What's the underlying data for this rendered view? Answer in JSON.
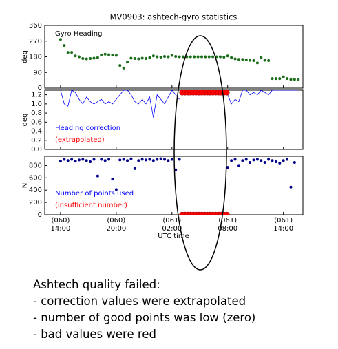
{
  "chart_data": [
    {
      "type": "scatter",
      "title": "MV0903: ashtech-gyro statistics",
      "ylabel": "deg",
      "xlim": [
        12.3,
        40.1
      ],
      "ylim": [
        0,
        360
      ],
      "yticks": [
        0,
        90,
        180,
        270,
        360
      ],
      "annotations": [
        {
          "text": "Gyro Heading",
          "color": "#000000"
        }
      ],
      "series": [
        {
          "color": "#1a6e1a",
          "x": [
            14.0,
            14.4,
            14.8,
            15.2,
            15.6,
            16.0,
            16.4,
            16.8,
            17.2,
            17.6,
            18.0,
            18.4,
            18.8,
            19.2,
            19.6,
            20.0,
            20.4,
            20.8,
            21.2,
            21.6,
            22.0,
            22.4,
            22.8,
            23.2,
            23.6,
            24.0,
            24.4,
            24.8,
            25.2,
            25.6,
            26.0,
            26.4,
            26.8,
            27.2,
            27.6,
            28.0,
            28.4,
            28.8,
            29.2,
            29.6,
            30.0,
            30.4,
            30.8,
            31.2,
            31.6,
            32.0,
            32.4,
            32.8,
            33.2,
            33.6,
            34.0,
            34.4,
            34.8,
            35.2,
            35.6,
            36.0,
            36.4,
            36.8,
            37.2,
            37.6,
            38.0,
            38.4,
            38.8,
            39.2,
            39.6
          ],
          "values": [
            280,
            245,
            205,
            205,
            185,
            180,
            170,
            168,
            170,
            172,
            175,
            190,
            195,
            192,
            190,
            188,
            130,
            115,
            150,
            172,
            170,
            168,
            172,
            170,
            175,
            185,
            180,
            178,
            182,
            180,
            188,
            182,
            180,
            180,
            180,
            180,
            180,
            180,
            180,
            180,
            180,
            180,
            180,
            180,
            178,
            185,
            175,
            168,
            165,
            165,
            162,
            160,
            158,
            145,
            175,
            160,
            158,
            55,
            55,
            55,
            65,
            55,
            50,
            50,
            48
          ]
        }
      ]
    },
    {
      "type": "line",
      "ylabel": "deg",
      "xlim": [
        12.3,
        40.1
      ],
      "ylim": [
        0,
        1.3
      ],
      "yticks": [
        {
          "value": 0,
          "label": "0.0"
        },
        0.2,
        0.4,
        0.6,
        0.8,
        {
          "value": 1,
          "label": "1.0"
        },
        1.2
      ],
      "annotations": [
        {
          "text": "Heading correction",
          "color": "#0000ff"
        },
        {
          "text": "(extrapolated)",
          "color": "#ff0000"
        }
      ],
      "series": [
        {
          "color": "#0000ff",
          "style": "line",
          "x": [
            14.0,
            14.4,
            14.8,
            15.2,
            15.6,
            16.0,
            16.4,
            16.8,
            17.2,
            17.6,
            18.0,
            18.4,
            18.8,
            19.2,
            19.6,
            20.0,
            20.4,
            20.8,
            21.2,
            21.6,
            22.0,
            22.4,
            22.8,
            23.2,
            23.6,
            24.0,
            24.4,
            24.8,
            25.2,
            25.6,
            26.0,
            26.4,
            26.8,
            27.2,
            27.6,
            28.0,
            28.4,
            28.8,
            29.2,
            29.6,
            30.0,
            30.4,
            30.8,
            31.2,
            31.6,
            32.0,
            32.4,
            32.8,
            33.2,
            33.6,
            34.0,
            34.4,
            34.8,
            35.2,
            35.6,
            36.0,
            36.4,
            36.8,
            37.2,
            37.6,
            38.0,
            38.4,
            38.8,
            39.2,
            39.6
          ],
          "values": [
            1.3,
            1.0,
            0.95,
            1.3,
            1.25,
            1.1,
            1.0,
            1.15,
            1.05,
            1.0,
            1.05,
            1.1,
            1.0,
            1.05,
            1.0,
            1.1,
            1.2,
            1.3,
            1.3,
            1.2,
            1.05,
            1.0,
            1.1,
            1.0,
            1.15,
            0.7,
            1.2,
            1.1,
            1.0,
            1.15,
            1.3,
            1.2,
            1.1,
            null,
            null,
            null,
            null,
            null,
            null,
            null,
            null,
            null,
            null,
            null,
            null,
            1.2,
            1.0,
            1.1,
            1.05,
            1.3,
            1.3,
            1.2,
            1.25,
            1.2,
            1.3,
            1.25,
            1.2,
            1.3,
            1.3,
            1.3,
            1.3,
            1.3,
            1.3,
            1.3,
            1.3
          ]
        },
        {
          "color": "#ff0000",
          "style": "dots",
          "x": [
            27.1,
            27.4,
            27.7,
            28.0,
            28.3,
            28.6,
            28.9,
            29.2,
            29.5,
            29.8,
            30.1,
            30.4,
            30.7,
            31.0,
            31.3,
            31.6,
            31.9
          ],
          "values": [
            1.25,
            1.25,
            1.25,
            1.25,
            1.25,
            1.25,
            1.25,
            1.25,
            1.25,
            1.25,
            1.25,
            1.25,
            1.25,
            1.25,
            1.25,
            1.25,
            1.25
          ]
        }
      ]
    },
    {
      "type": "scatter",
      "ylabel": "N",
      "xlabel": "UTC time",
      "xlim": [
        12.3,
        40.1
      ],
      "ylim": [
        0,
        950
      ],
      "yticks": [
        0,
        200,
        400,
        600,
        800
      ],
      "xticks": [
        {
          "value": 14,
          "label": "(060)\n14:00"
        },
        {
          "value": 20,
          "label": "(060)\n20:00"
        },
        {
          "value": 26,
          "label": "(061)\n02:00"
        },
        {
          "value": 32,
          "label": "(061)\n08:00"
        },
        {
          "value": 38,
          "label": "(061)\n14:00"
        }
      ],
      "annotations": [
        {
          "text": "Number of points used",
          "color": "#0000ff"
        },
        {
          "text": "(insufficient number)",
          "color": "#ff0000"
        }
      ],
      "series": [
        {
          "color": "#00008b",
          "style": "dots",
          "x": [
            14.0,
            14.4,
            14.8,
            15.2,
            15.6,
            16.0,
            16.4,
            16.8,
            17.2,
            17.6,
            18.0,
            18.4,
            18.8,
            19.2,
            19.6,
            20.0,
            20.4,
            20.8,
            21.2,
            21.6,
            22.0,
            22.4,
            22.8,
            23.2,
            23.6,
            24.0,
            24.4,
            24.8,
            25.2,
            25.6,
            26.0,
            26.4,
            26.8,
            27.2,
            27.6,
            28.0,
            28.4,
            28.8,
            29.2,
            29.6,
            30.0,
            30.4,
            30.8,
            31.2,
            31.6,
            32.0,
            32.4,
            32.8,
            33.2,
            33.6,
            34.0,
            34.4,
            34.8,
            35.2,
            35.6,
            36.0,
            36.4,
            36.8,
            37.2,
            37.6,
            38.0,
            38.4,
            38.8,
            39.2,
            39.6
          ],
          "values": [
            870,
            900,
            880,
            900,
            870,
            890,
            900,
            880,
            860,
            900,
            630,
            900,
            880,
            900,
            580,
            410,
            890,
            900,
            880,
            910,
            750,
            880,
            900,
            890,
            900,
            880,
            900,
            910,
            900,
            880,
            900,
            730,
            900,
            null,
            null,
            null,
            null,
            null,
            null,
            null,
            null,
            null,
            null,
            null,
            null,
            770,
            880,
            900,
            800,
            880,
            900,
            850,
            890,
            900,
            880,
            850,
            900,
            880,
            860,
            840,
            880,
            900,
            450,
            850,
            null
          ]
        },
        {
          "color": "#ff0000",
          "style": "big",
          "x": [
            27.1,
            27.4,
            27.7,
            28.0,
            28.3,
            28.6,
            28.9,
            29.2,
            29.5,
            29.8,
            30.1,
            30.4,
            30.7,
            31.0,
            31.3,
            31.6,
            31.9
          ],
          "values": [
            0,
            0,
            0,
            0,
            0,
            0,
            0,
            0,
            0,
            0,
            0,
            0,
            0,
            0,
            0,
            0,
            0
          ]
        }
      ]
    }
  ],
  "notes": {
    "heading": "Ashtech quality failed:",
    "lines": [
      "- correction values were extrapolated",
      "- number of good points was low (zero)",
      "- bad values were red"
    ]
  }
}
